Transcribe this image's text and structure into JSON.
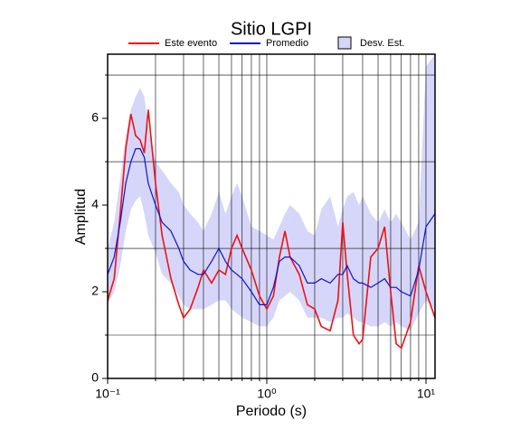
{
  "chart_data": {
    "type": "line",
    "title": "Sitio LGPI",
    "xlabel": "Periodo (s)",
    "ylabel": "Amplitud",
    "xscale": "log",
    "xlim": [
      0.1,
      11.4
    ],
    "ylim": [
      0,
      7.48
    ],
    "xticks": [
      {
        "value": 0.1,
        "label": "10⁻¹"
      },
      {
        "value": 1,
        "label": "10⁰"
      },
      {
        "value": 10,
        "label": "10¹"
      }
    ],
    "xminorticks": [
      0.2,
      0.3,
      0.4,
      0.5,
      0.6,
      0.7,
      0.8,
      0.9,
      2,
      3,
      4,
      5,
      6,
      7,
      8,
      9
    ],
    "yticks": [
      0,
      2,
      4,
      6
    ],
    "yminorticks": [
      1,
      3,
      5,
      7
    ],
    "grid": true,
    "x": [
      0.1,
      0.11,
      0.12,
      0.13,
      0.14,
      0.15,
      0.16,
      0.17,
      0.18,
      0.2,
      0.22,
      0.25,
      0.28,
      0.3,
      0.33,
      0.37,
      0.4,
      0.45,
      0.5,
      0.55,
      0.6,
      0.65,
      0.7,
      0.8,
      0.9,
      1.0,
      1.1,
      1.2,
      1.3,
      1.4,
      1.6,
      1.8,
      2.0,
      2.2,
      2.5,
      2.8,
      3.0,
      3.2,
      3.5,
      3.8,
      4.0,
      4.5,
      5.0,
      5.5,
      6.0,
      6.5,
      7.0,
      8.0,
      9.0,
      10,
      11.4
    ],
    "series": [
      {
        "name": "Este evento",
        "color": "#ee1111",
        "values": [
          1.8,
          2.3,
          3.8,
          5.3,
          6.1,
          5.6,
          5.5,
          5.2,
          6.2,
          4.5,
          3.3,
          2.3,
          1.7,
          1.4,
          1.6,
          2.1,
          2.5,
          2.2,
          2.5,
          2.4,
          3.0,
          3.3,
          3.0,
          2.5,
          1.9,
          1.6,
          1.9,
          2.8,
          3.4,
          2.8,
          2.4,
          1.7,
          1.6,
          1.2,
          1.1,
          1.8,
          3.6,
          2.4,
          1.0,
          0.8,
          0.9,
          2.8,
          3.0,
          3.5,
          2.0,
          0.8,
          0.7,
          1.3,
          2.6,
          2.0,
          1.4
        ]
      },
      {
        "name": "Promedio",
        "color": "#1111cc",
        "values": [
          2.4,
          2.8,
          3.6,
          4.5,
          5.0,
          5.3,
          5.3,
          5.1,
          4.5,
          4.0,
          3.6,
          3.4,
          3.0,
          2.7,
          2.5,
          2.4,
          2.4,
          2.7,
          3.0,
          2.7,
          2.5,
          2.4,
          2.3,
          2.0,
          1.7,
          1.7,
          2.1,
          2.7,
          2.8,
          2.8,
          2.6,
          2.2,
          2.2,
          2.3,
          2.2,
          2.4,
          2.4,
          2.6,
          2.3,
          2.2,
          2.2,
          2.1,
          2.2,
          2.3,
          2.1,
          2.1,
          2.0,
          1.9,
          2.5,
          3.5,
          3.8
        ]
      },
      {
        "name": "Desv. Est.",
        "color": "#d6d6fa",
        "upper": [
          3.0,
          3.6,
          4.6,
          5.6,
          6.2,
          6.5,
          6.7,
          6.5,
          5.8,
          5.0,
          4.8,
          4.5,
          4.3,
          4.0,
          3.8,
          3.6,
          3.4,
          3.8,
          4.3,
          3.8,
          4.2,
          4.5,
          4.2,
          3.5,
          3.4,
          3.3,
          3.2,
          3.5,
          3.8,
          4.0,
          3.8,
          3.4,
          3.3,
          3.9,
          4.2,
          3.5,
          3.9,
          4.2,
          4.3,
          4.0,
          4.2,
          3.8,
          3.6,
          3.9,
          3.6,
          3.8,
          3.6,
          3.2,
          3.6,
          7.2,
          7.48
        ],
        "lower": [
          1.7,
          2.0,
          2.6,
          3.4,
          3.9,
          4.1,
          4.2,
          3.8,
          3.3,
          2.9,
          2.4,
          2.2,
          1.9,
          1.7,
          1.6,
          1.6,
          1.6,
          1.7,
          1.8,
          1.8,
          1.6,
          1.5,
          1.4,
          1.3,
          1.2,
          1.2,
          1.4,
          1.8,
          1.9,
          2.0,
          1.8,
          1.4,
          1.4,
          1.4,
          1.3,
          1.4,
          1.4,
          1.5,
          1.4,
          1.3,
          1.3,
          1.2,
          1.2,
          1.3,
          1.2,
          1.3,
          1.2,
          1.1,
          1.5,
          1.8,
          1.6
        ]
      }
    ]
  }
}
